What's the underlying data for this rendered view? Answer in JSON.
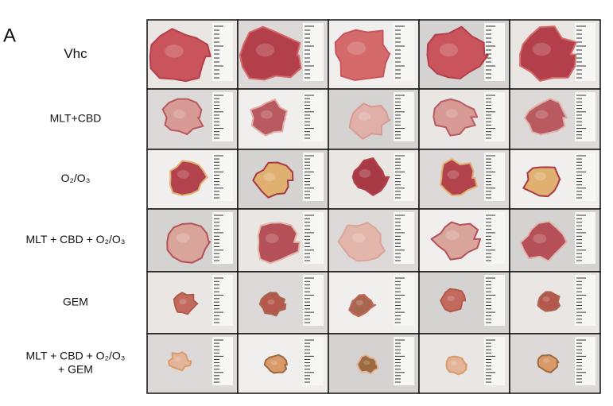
{
  "panel_label": "A",
  "rows": [
    {
      "label": [
        "Vhc"
      ]
    },
    {
      "label": [
        "MLT+CBD"
      ]
    },
    {
      "label": [
        "O₂/O₃"
      ]
    },
    {
      "label": [
        "MLT + CBD + O₂/O₃"
      ]
    },
    {
      "label": [
        "GEM"
      ]
    },
    {
      "label": [
        "MLT + CBD + O₂/O₃",
        "+ GEM"
      ]
    }
  ]
}
